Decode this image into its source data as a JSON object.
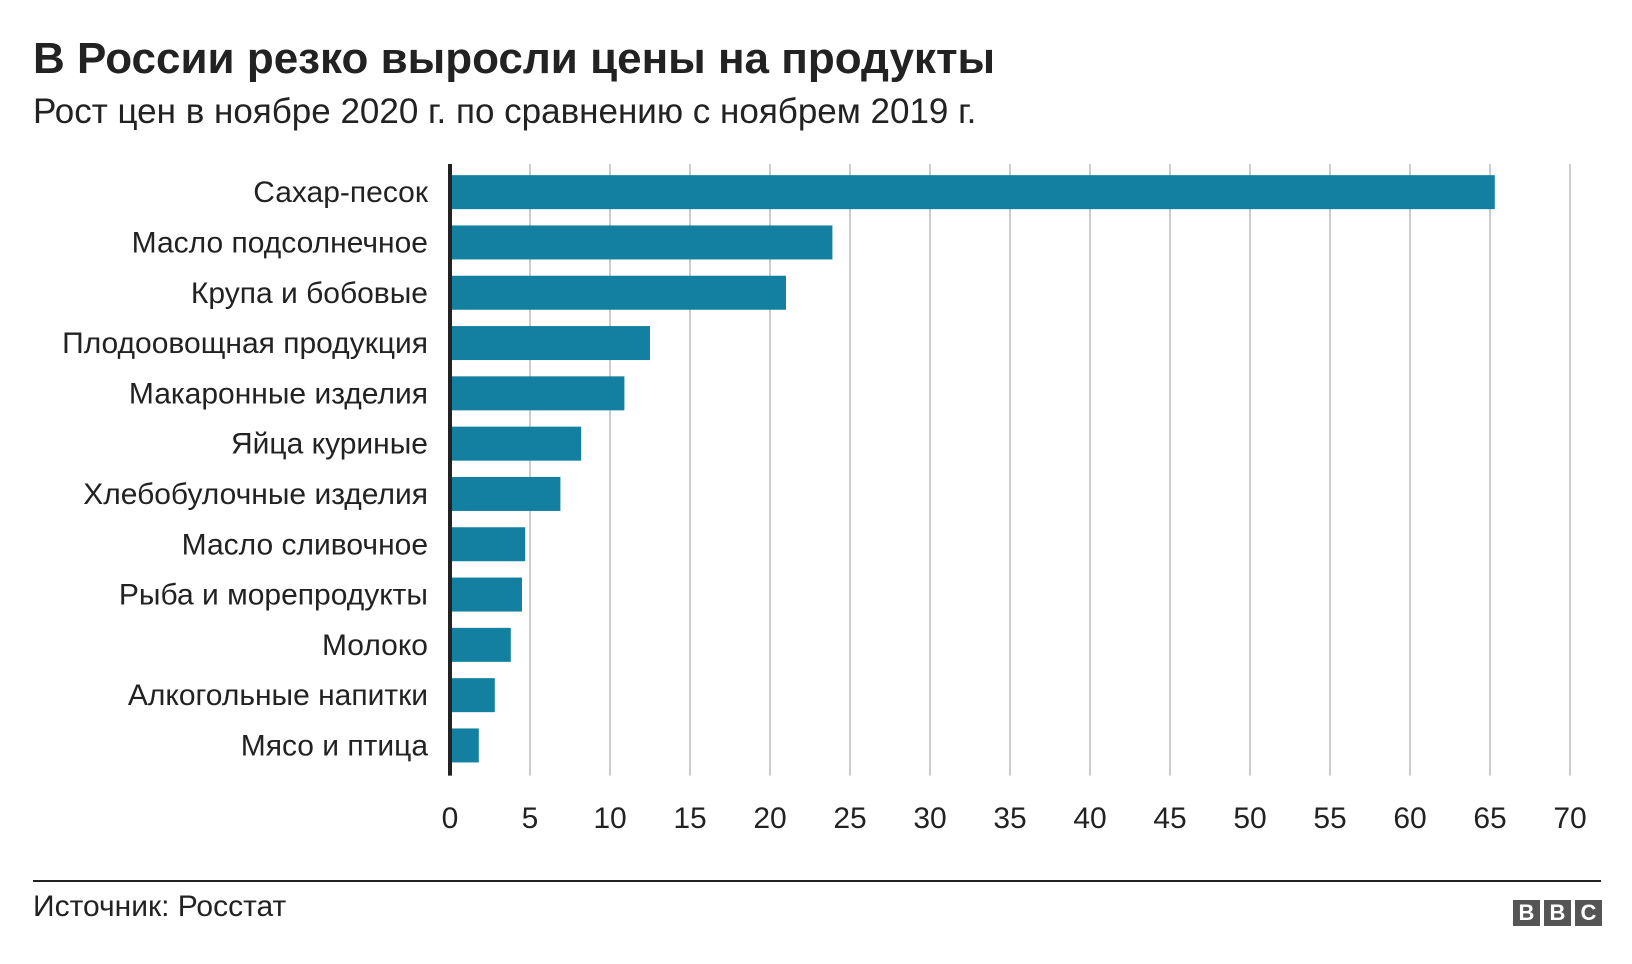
{
  "header": {
    "title": "В России резко выросли цены на продукты",
    "subtitle": "Рост цен в ноябре 2020 г. по сравнению с ноябрем 2019 г."
  },
  "footer": {
    "source": "Источник: Росстат",
    "logo_letters": [
      "B",
      "B",
      "C"
    ]
  },
  "colors": {
    "bar": "#1380A1",
    "grid": "#CCCCCC",
    "axis": "#222222",
    "text": "#222222",
    "logo_bg": "#555555"
  },
  "chart_data": {
    "type": "bar",
    "orientation": "horizontal",
    "title": "В России резко выросли цены на продукты",
    "subtitle": "Рост цен в ноябре 2020 г. по сравнению с ноябрем 2019 г.",
    "xlabel": "",
    "ylabel": "",
    "xlim": [
      0,
      70
    ],
    "xticks": [
      0,
      5,
      10,
      15,
      20,
      25,
      30,
      35,
      40,
      45,
      50,
      55,
      60,
      65,
      70
    ],
    "grid": true,
    "legend": "none",
    "categories": [
      "Сахар-песок",
      "Масло подсолнечное",
      "Крупа и бобовые",
      "Плодоовощная продукция",
      "Макаронные изделия",
      "Яйца куриные",
      "Хлебобулочные изделия",
      "Масло сливочное",
      "Рыба и морепродукты",
      "Молоко",
      "Алкогольные напитки",
      "Мясо и птица"
    ],
    "values": [
      65.3,
      23.9,
      21.0,
      12.5,
      10.9,
      8.2,
      6.9,
      4.7,
      4.5,
      3.8,
      2.8,
      1.8
    ]
  }
}
